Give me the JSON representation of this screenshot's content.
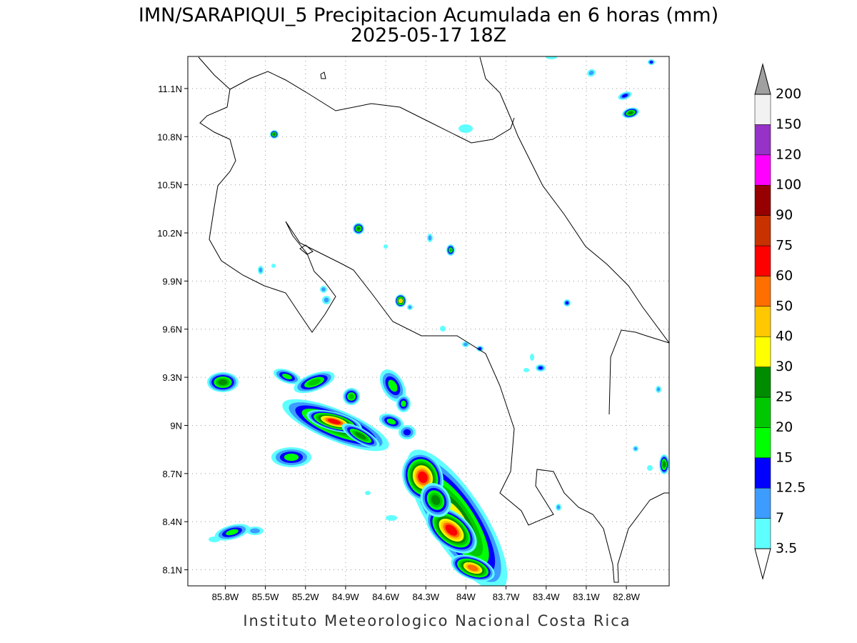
{
  "title": "IMN/SARAPIQUI_5 Precipitacion Acumulada en 6 horas (mm)",
  "subtitle": "2025-05-17 18Z",
  "footer": "Instituto Meteorologico Nacional Costa Rica",
  "map": {
    "lon_range": [
      -86.08,
      -82.48
    ],
    "lat_range": [
      8.0,
      11.3
    ],
    "grid": true,
    "lon_ticks": [
      {
        "value": -85.8,
        "label": "85.8W"
      },
      {
        "value": -85.5,
        "label": "85.5W"
      },
      {
        "value": -85.2,
        "label": "85.2W"
      },
      {
        "value": -84.9,
        "label": "84.9W"
      },
      {
        "value": -84.6,
        "label": "84.6W"
      },
      {
        "value": -84.3,
        "label": "84.3W"
      },
      {
        "value": -84,
        "label": "84W"
      },
      {
        "value": -83.7,
        "label": "83.7W"
      },
      {
        "value": -83.4,
        "label": "83.4W"
      },
      {
        "value": -83.1,
        "label": "83.1W"
      },
      {
        "value": -82.8,
        "label": "82.8W"
      }
    ],
    "lat_ticks": [
      {
        "value": 11.1,
        "label": "11.1N"
      },
      {
        "value": 10.8,
        "label": "10.8N"
      },
      {
        "value": 10.5,
        "label": "10.5N"
      },
      {
        "value": 10.2,
        "label": "10.2N"
      },
      {
        "value": 9.9,
        "label": "9.9N"
      },
      {
        "value": 9.6,
        "label": "9.6N"
      },
      {
        "value": 9.3,
        "label": "9.3N"
      },
      {
        "value": 9,
        "label": "9N"
      },
      {
        "value": 8.7,
        "label": "8.7N"
      },
      {
        "value": 8.4,
        "label": "8.4N"
      },
      {
        "value": 8.1,
        "label": "8.1N"
      }
    ]
  },
  "colorbar": {
    "levels": [
      3.5,
      7,
      12.5,
      15,
      20,
      25,
      30,
      40,
      50,
      60,
      75,
      90,
      100,
      120,
      150,
      200
    ],
    "colors": [
      "#60ffff",
      "#3c9cff",
      "#0000ff",
      "#00ff00",
      "#00c800",
      "#008c00",
      "#ffff00",
      "#ffc800",
      "#ff6e00",
      "#ff0000",
      "#c83200",
      "#960000",
      "#ff00ff",
      "#9632c8",
      "#f2f2f2"
    ],
    "below_color": "#ffffff",
    "above_color": "#a0a0a0"
  }
}
